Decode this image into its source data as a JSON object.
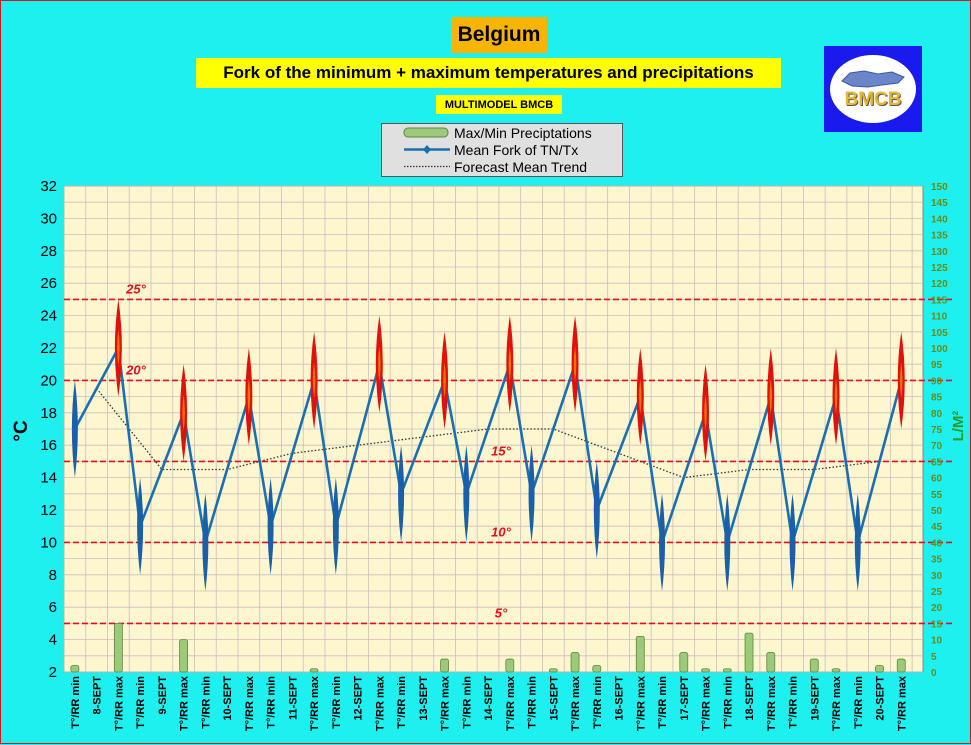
{
  "header": {
    "title": "Belgium",
    "subtitle": "Fork of the minimum + maximum temperatures and precipitations",
    "model": "MULTIMODEL BMCB",
    "logo_text": "BMCB",
    "logo_color": "#1a1aee"
  },
  "legend": {
    "items": [
      {
        "label": "Max/Min Preciptations",
        "swatch": "precip-bar"
      },
      {
        "label": "Mean Fork of TN/Tx",
        "swatch": "line-marker"
      },
      {
        "label": "Forecast Mean Trend",
        "swatch": "dotted-line"
      }
    ]
  },
  "chart_data": {
    "type": "line",
    "ylabel": "°C",
    "y2label": "L/M²",
    "ylim": [
      2,
      32
    ],
    "y_ticks": [
      2,
      4,
      6,
      8,
      10,
      12,
      14,
      16,
      18,
      20,
      22,
      24,
      26,
      28,
      30,
      32
    ],
    "y2lim": [
      0,
      150
    ],
    "y2_ticks": [
      0,
      5,
      10,
      15,
      20,
      25,
      30,
      35,
      40,
      45,
      50,
      55,
      60,
      65,
      70,
      75,
      80,
      85,
      90,
      95,
      100,
      105,
      110,
      115,
      120,
      125,
      130,
      135,
      140,
      145,
      150
    ],
    "grid": true,
    "legend_position": "top-center",
    "colors": {
      "plot_bg": "#fdf6cf",
      "grid": "#c8bfbf",
      "mean_line": "#1a6fb0",
      "min_marker": "#1a5fa8",
      "max_marker": "#e0110b",
      "max_marker_core": "#f7b500",
      "precip": "#9cc97a",
      "ref_line": "#e01020",
      "trend": "#333333",
      "ylabel2": "#2a9a2a",
      "y2tick": "#6d8a15"
    },
    "reference_lines": [
      {
        "value": 25,
        "label": "25°"
      },
      {
        "value": 20,
        "label": "20°"
      },
      {
        "value": 15,
        "label": "15°"
      },
      {
        "value": 10,
        "label": "10°"
      },
      {
        "value": 5,
        "label": "5°"
      }
    ],
    "categories": [
      "T°/RR min",
      "8-SEPT",
      "T°/RR max",
      "T°/RR min",
      "9-SEPT",
      "T°/RR max",
      "T°/RR min",
      "10-SEPT",
      "T°/RR max",
      "T°/RR min",
      "11-SEPT",
      "T°/RR max",
      "T°/RR min",
      "12-SEPT",
      "T°/RR max",
      "T°/RR min",
      "13-SEPT",
      "T°/RR max",
      "T°/RR min",
      "14-SEPT",
      "T°/RR max",
      "T°/RR min",
      "15-SEPT",
      "T°/RR max",
      "T°/RR min",
      "16-SEPT",
      "T°/RR max",
      "T°/RR min",
      "17-SEPT",
      "T°/RR max",
      "T°/RR min",
      "18-SEPT",
      "T°/RR max",
      "T°/RR min",
      "19-SEPT",
      "T°/RR max",
      "T°/RR min",
      "20-SEPT",
      "T°/RR max"
    ],
    "series": [
      {
        "name": "Mean Fork of TN/Tx",
        "points": [
          {
            "x": 0,
            "y": 17,
            "lo": 14,
            "hi": 20,
            "kind": "min"
          },
          {
            "x": 2,
            "y": 22,
            "lo": 19,
            "hi": 25,
            "kind": "max"
          },
          {
            "x": 3,
            "y": 11,
            "lo": 8,
            "hi": 14,
            "kind": "min"
          },
          {
            "x": 5,
            "y": 18,
            "lo": 15,
            "hi": 21,
            "kind": "max"
          },
          {
            "x": 6,
            "y": 10,
            "lo": 7,
            "hi": 13,
            "kind": "min"
          },
          {
            "x": 8,
            "y": 19,
            "lo": 16,
            "hi": 22,
            "kind": "max"
          },
          {
            "x": 9,
            "y": 11,
            "lo": 8,
            "hi": 14,
            "kind": "min"
          },
          {
            "x": 11,
            "y": 20,
            "lo": 17,
            "hi": 23,
            "kind": "max"
          },
          {
            "x": 12,
            "y": 11,
            "lo": 8,
            "hi": 14,
            "kind": "min"
          },
          {
            "x": 14,
            "y": 21,
            "lo": 18,
            "hi": 24,
            "kind": "max"
          },
          {
            "x": 15,
            "y": 13,
            "lo": 10,
            "hi": 16,
            "kind": "min"
          },
          {
            "x": 17,
            "y": 20,
            "lo": 17,
            "hi": 23,
            "kind": "max"
          },
          {
            "x": 18,
            "y": 13,
            "lo": 10,
            "hi": 16,
            "kind": "min"
          },
          {
            "x": 20,
            "y": 21,
            "lo": 18,
            "hi": 24,
            "kind": "max"
          },
          {
            "x": 21,
            "y": 13,
            "lo": 10,
            "hi": 16,
            "kind": "min"
          },
          {
            "x": 23,
            "y": 21,
            "lo": 18,
            "hi": 24,
            "kind": "max"
          },
          {
            "x": 24,
            "y": 12,
            "lo": 9,
            "hi": 15,
            "kind": "min"
          },
          {
            "x": 26,
            "y": 19,
            "lo": 16,
            "hi": 22,
            "kind": "max"
          },
          {
            "x": 27,
            "y": 10,
            "lo": 7,
            "hi": 13,
            "kind": "min"
          },
          {
            "x": 29,
            "y": 18,
            "lo": 15,
            "hi": 21,
            "kind": "max"
          },
          {
            "x": 30,
            "y": 10,
            "lo": 7,
            "hi": 13,
            "kind": "min"
          },
          {
            "x": 32,
            "y": 19,
            "lo": 16,
            "hi": 22,
            "kind": "max"
          },
          {
            "x": 33,
            "y": 10,
            "lo": 7,
            "hi": 13,
            "kind": "min"
          },
          {
            "x": 35,
            "y": 19,
            "lo": 16,
            "hi": 22,
            "kind": "max"
          },
          {
            "x": 36,
            "y": 10,
            "lo": 7,
            "hi": 13,
            "kind": "min"
          },
          {
            "x": 38,
            "y": 20,
            "lo": 17,
            "hi": 23,
            "kind": "max"
          }
        ]
      },
      {
        "name": "Forecast Mean Trend",
        "x": [
          1,
          4,
          7,
          10,
          13,
          16,
          19,
          22,
          25,
          28,
          31,
          34,
          37
        ],
        "values": [
          19.5,
          14.5,
          14.5,
          15.5,
          16,
          16.5,
          17,
          17,
          15.5,
          14,
          14.5,
          14.5,
          15
        ]
      },
      {
        "name": "Max/Min Preciptations",
        "x": [
          0,
          2,
          5,
          11,
          17,
          20,
          22,
          23,
          24,
          26,
          29,
          32,
          35,
          38
        ],
        "values": [
          2,
          15,
          10,
          1,
          4,
          4,
          1,
          6,
          2,
          11,
          1,
          6,
          1,
          4
        ],
        "extra": [
          {
            "x": 31,
            "v": 12
          },
          {
            "x": 28,
            "v": 6
          },
          {
            "x": 30,
            "v": 1
          },
          {
            "x": 34,
            "v": 4
          },
          {
            "x": 37,
            "v": 2
          }
        ]
      }
    ]
  }
}
